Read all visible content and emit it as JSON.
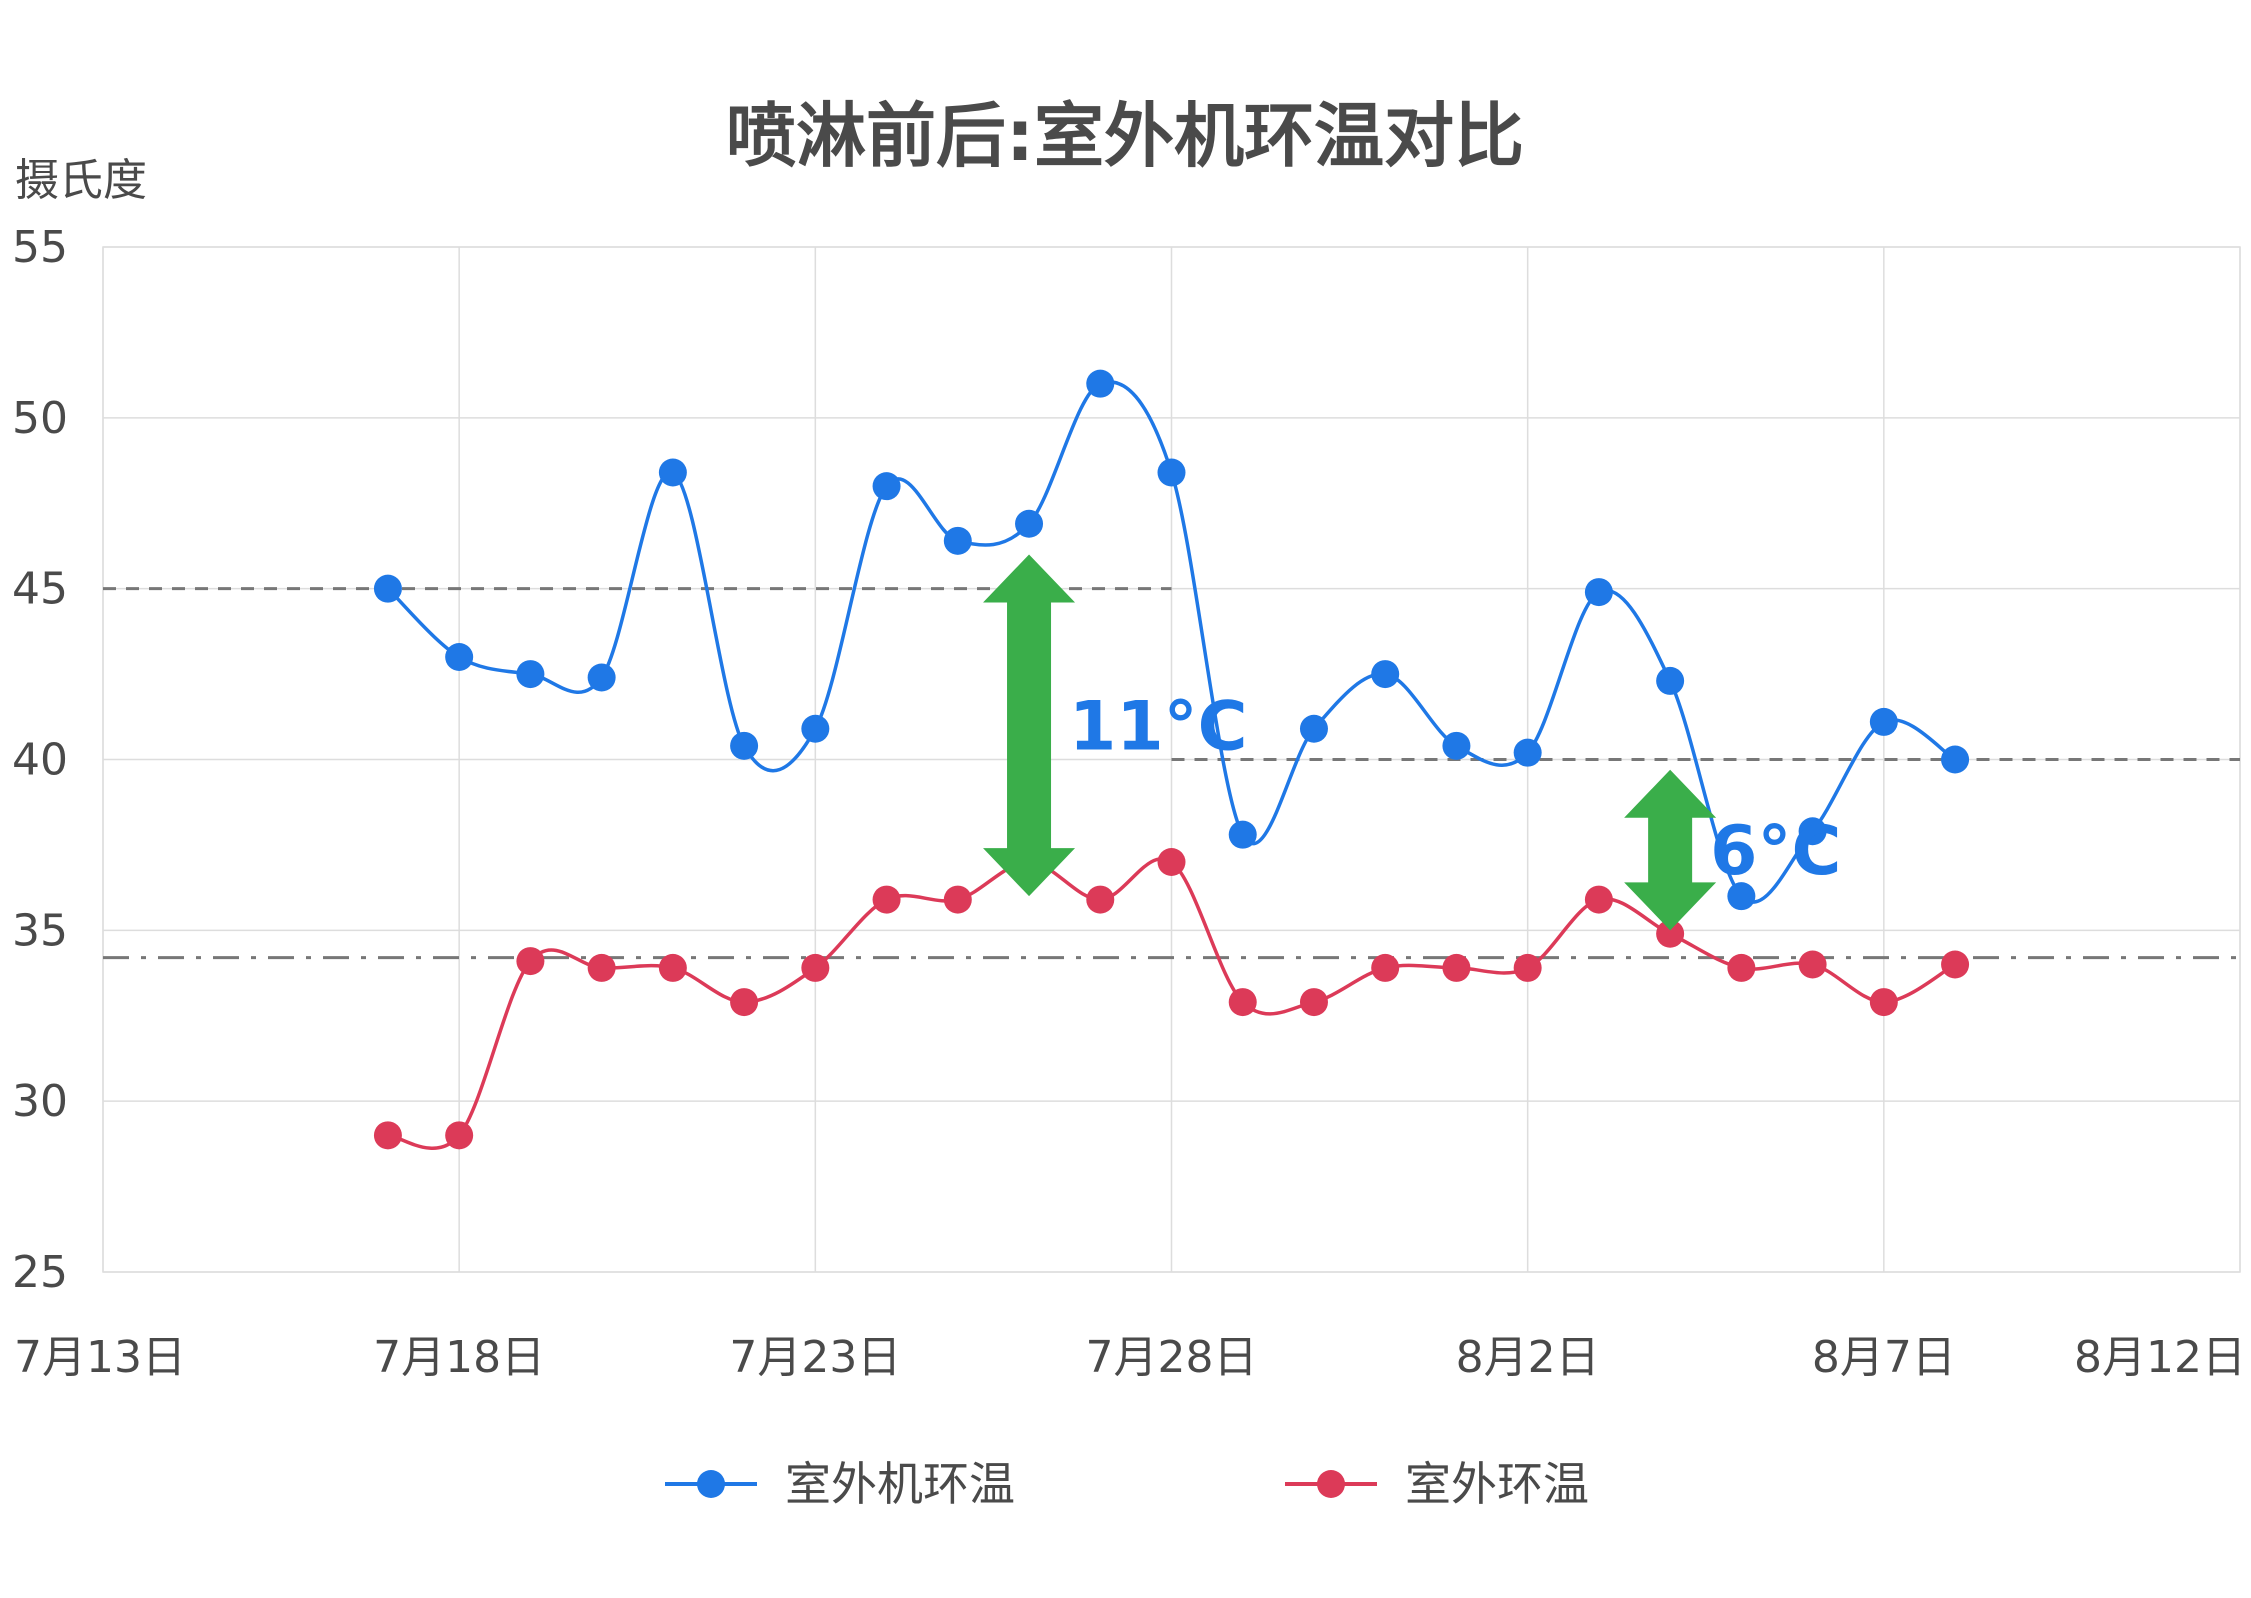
{
  "chart_data": {
    "type": "line",
    "title": "喷淋前后:室外机环温对比",
    "ylabel": "摄氏度",
    "xlabel": "",
    "ylim": [
      25,
      55
    ],
    "y_ticks": [
      25,
      30,
      35,
      40,
      45,
      50,
      55
    ],
    "x_range": [
      "07-13",
      "08-12"
    ],
    "x_ticks": [
      {
        "date": "07-13",
        "label": "7月13日"
      },
      {
        "date": "07-18",
        "label": "7月18日"
      },
      {
        "date": "07-23",
        "label": "7月23日"
      },
      {
        "date": "07-28",
        "label": "7月28日"
      },
      {
        "date": "08-02",
        "label": "8月2日"
      },
      {
        "date": "08-07",
        "label": "8月7日"
      },
      {
        "date": "08-12",
        "label": "8月12日"
      }
    ],
    "grid": true,
    "legend_position": "bottom",
    "series": [
      {
        "name": "室外机环温",
        "color": "#1f78e6",
        "points": [
          {
            "x": "07-17",
            "y": 45.0
          },
          {
            "x": "07-18",
            "y": 43.0
          },
          {
            "x": "07-19",
            "y": 42.5
          },
          {
            "x": "07-20",
            "y": 42.4
          },
          {
            "x": "07-21",
            "y": 48.4
          },
          {
            "x": "07-22",
            "y": 40.4
          },
          {
            "x": "07-23",
            "y": 40.9
          },
          {
            "x": "07-24",
            "y": 48.0
          },
          {
            "x": "07-25",
            "y": 46.4
          },
          {
            "x": "07-26",
            "y": 46.9
          },
          {
            "x": "07-27",
            "y": 51.0
          },
          {
            "x": "07-28",
            "y": 48.4
          },
          {
            "x": "07-29",
            "y": 37.8
          },
          {
            "x": "07-30",
            "y": 40.9
          },
          {
            "x": "07-31",
            "y": 42.5
          },
          {
            "x": "08-01",
            "y": 40.4
          },
          {
            "x": "08-02",
            "y": 40.2
          },
          {
            "x": "08-03",
            "y": 44.9
          },
          {
            "x": "08-04",
            "y": 42.3
          },
          {
            "x": "08-05",
            "y": 36.0
          },
          {
            "x": "08-06",
            "y": 37.9
          },
          {
            "x": "08-07",
            "y": 41.1
          },
          {
            "x": "08-08",
            "y": 40.0
          }
        ]
      },
      {
        "name": "室外环温",
        "color": "#dc3a58",
        "points": [
          {
            "x": "07-17",
            "y": 29.0
          },
          {
            "x": "07-18",
            "y": 29.0
          },
          {
            "x": "07-19",
            "y": 34.1
          },
          {
            "x": "07-20",
            "y": 33.9
          },
          {
            "x": "07-21",
            "y": 33.9
          },
          {
            "x": "07-22",
            "y": 32.9
          },
          {
            "x": "07-23",
            "y": 33.9
          },
          {
            "x": "07-24",
            "y": 35.9
          },
          {
            "x": "07-25",
            "y": 35.9
          },
          {
            "x": "07-26",
            "y": 37.0
          },
          {
            "x": "07-27",
            "y": 35.9
          },
          {
            "x": "07-28",
            "y": 37.0
          },
          {
            "x": "07-29",
            "y": 32.9
          },
          {
            "x": "07-30",
            "y": 32.9
          },
          {
            "x": "07-31",
            "y": 33.9
          },
          {
            "x": "08-01",
            "y": 33.9
          },
          {
            "x": "08-02",
            "y": 33.9
          },
          {
            "x": "08-03",
            "y": 35.9
          },
          {
            "x": "08-04",
            "y": 34.9
          },
          {
            "x": "08-05",
            "y": 33.9
          },
          {
            "x": "08-06",
            "y": 34.0
          },
          {
            "x": "08-07",
            "y": 32.9
          },
          {
            "x": "08-08",
            "y": 34.0
          }
        ]
      }
    ],
    "reference_lines": [
      {
        "y": 45,
        "x_from": "07-13",
        "x_to": "07-28",
        "style": "dashed"
      },
      {
        "y": 40,
        "x_from": "07-28",
        "x_to": "08-12",
        "style": "dashed"
      },
      {
        "y": 34.2,
        "x_from": "07-13",
        "x_to": "08-12",
        "style": "dashdot"
      }
    ],
    "annotations": [
      {
        "label": "11°C",
        "x": "07-26",
        "y_from": 36,
        "y_to": 46,
        "color": "#3aae4a"
      },
      {
        "label": "6°C",
        "x": "08-04",
        "y_from": 35,
        "y_to": 39.7,
        "color": "#3aae4a"
      }
    ]
  }
}
